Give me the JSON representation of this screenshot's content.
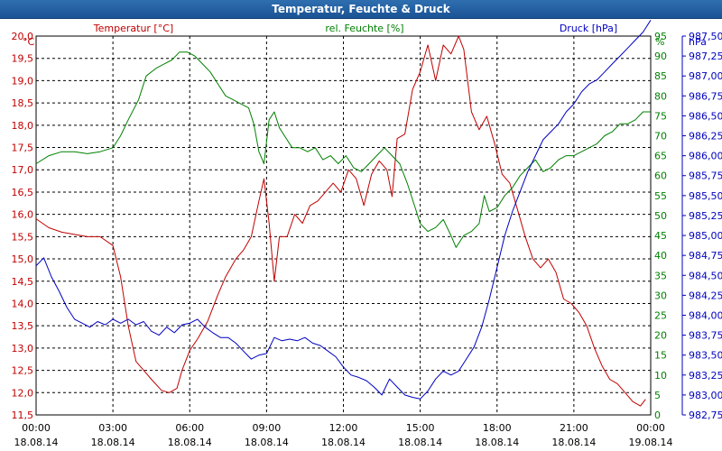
{
  "window": {
    "title": "Temperatur, Feuchte & Druck"
  },
  "colors": {
    "temperature": "#c00000",
    "humidity": "#008000",
    "pressure": "#0000c0",
    "title_bar": "#1e5a9c",
    "grid": "#000000"
  },
  "chart_data": {
    "type": "line",
    "title": "Temperatur, Feuchte & Druck",
    "grid": true,
    "x_ticks": [
      {
        "time": "00:00",
        "date": "18.08.14"
      },
      {
        "time": "03:00",
        "date": "18.08.14"
      },
      {
        "time": "06:00",
        "date": "18.08.14"
      },
      {
        "time": "09:00",
        "date": "18.08.14"
      },
      {
        "time": "12:00",
        "date": "18.08.14"
      },
      {
        "time": "15:00",
        "date": "18.08.14"
      },
      {
        "time": "18:00",
        "date": "18.08.14"
      },
      {
        "time": "21:00",
        "date": "18.08.14"
      },
      {
        "time": "00:00",
        "date": "19.08.14"
      }
    ],
    "axes": {
      "temperature": {
        "label": "Temperatur [°C]",
        "unit": "°C",
        "range": [
          11.5,
          20.0
        ],
        "ticks": [
          "11,5",
          "12,0",
          "12,5",
          "13,0",
          "13,5",
          "14,0",
          "14,5",
          "15,0",
          "15,5",
          "16,0",
          "16,5",
          "17,0",
          "17,5",
          "18,0",
          "18,5",
          "19,0",
          "19,5",
          "20,0"
        ]
      },
      "humidity": {
        "label": "rel. Feuchte [%]",
        "unit": "%",
        "range": [
          0,
          95
        ],
        "ticks": [
          "0",
          "5",
          "10",
          "15",
          "20",
          "25",
          "30",
          "35",
          "40",
          "45",
          "50",
          "55",
          "60",
          "65",
          "70",
          "75",
          "80",
          "85",
          "90",
          "95"
        ]
      },
      "pressure": {
        "label": "Druck [hPa]",
        "unit": "hPa",
        "range": [
          982.75,
          987.5
        ],
        "ticks": [
          "982,75",
          "983,00",
          "983,25",
          "983,50",
          "983,75",
          "984,00",
          "984,25",
          "984,50",
          "984,75",
          "985,00",
          "985,25",
          "985,50",
          "985,75",
          "986,00",
          "986,25",
          "986,50",
          "986,75",
          "987,00",
          "987,25",
          "987,50"
        ]
      }
    },
    "series": [
      {
        "name": "Temperatur [°C]",
        "axis": "temperature",
        "color": "#c00000",
        "points": [
          [
            0,
            15.9
          ],
          [
            0.5,
            15.7
          ],
          [
            1,
            15.6
          ],
          [
            1.5,
            15.55
          ],
          [
            2,
            15.5
          ],
          [
            2.5,
            15.5
          ],
          [
            3,
            15.3
          ],
          [
            3.3,
            14.6
          ],
          [
            3.6,
            13.5
          ],
          [
            3.9,
            12.7
          ],
          [
            4.2,
            12.5
          ],
          [
            4.5,
            12.3
          ],
          [
            4.9,
            12.05
          ],
          [
            5.2,
            12.0
          ],
          [
            5.5,
            12.1
          ],
          [
            5.7,
            12.5
          ],
          [
            6.0,
            12.95
          ],
          [
            6.3,
            13.2
          ],
          [
            6.7,
            13.6
          ],
          [
            7.1,
            14.2
          ],
          [
            7.4,
            14.6
          ],
          [
            7.8,
            15.0
          ],
          [
            8.1,
            15.2
          ],
          [
            8.4,
            15.5
          ],
          [
            8.7,
            16.3
          ],
          [
            8.9,
            16.8
          ],
          [
            9.1,
            15.8
          ],
          [
            9.3,
            14.5
          ],
          [
            9.5,
            15.5
          ],
          [
            9.8,
            15.5
          ],
          [
            10.1,
            16.0
          ],
          [
            10.4,
            15.8
          ],
          [
            10.7,
            16.2
          ],
          [
            11,
            16.3
          ],
          [
            11.3,
            16.5
          ],
          [
            11.6,
            16.7
          ],
          [
            11.9,
            16.5
          ],
          [
            12.2,
            17.0
          ],
          [
            12.5,
            16.8
          ],
          [
            12.8,
            16.2
          ],
          [
            13.1,
            16.9
          ],
          [
            13.4,
            17.2
          ],
          [
            13.7,
            17.0
          ],
          [
            13.9,
            16.4
          ],
          [
            14.1,
            17.7
          ],
          [
            14.4,
            17.8
          ],
          [
            14.7,
            18.8
          ],
          [
            15,
            19.2
          ],
          [
            15.3,
            19.8
          ],
          [
            15.6,
            19.0
          ],
          [
            15.9,
            19.8
          ],
          [
            16.2,
            19.6
          ],
          [
            16.5,
            20.0
          ],
          [
            16.7,
            19.7
          ],
          [
            17,
            18.3
          ],
          [
            17.3,
            17.9
          ],
          [
            17.6,
            18.2
          ],
          [
            17.9,
            17.6
          ],
          [
            18.2,
            16.9
          ],
          [
            18.5,
            16.7
          ],
          [
            18.8,
            16.1
          ],
          [
            19.1,
            15.5
          ],
          [
            19.4,
            15.0
          ],
          [
            19.7,
            14.8
          ],
          [
            20,
            15.0
          ],
          [
            20.3,
            14.7
          ],
          [
            20.6,
            14.1
          ],
          [
            20.9,
            14.0
          ],
          [
            21.2,
            13.8
          ],
          [
            21.5,
            13.5
          ],
          [
            21.8,
            13.0
          ],
          [
            22.1,
            12.6
          ],
          [
            22.4,
            12.3
          ],
          [
            22.7,
            12.2
          ],
          [
            23,
            12.0
          ],
          [
            23.3,
            11.8
          ],
          [
            23.6,
            11.7
          ],
          [
            23.8,
            11.85
          ]
        ]
      },
      {
        "name": "rel. Feuchte [%]",
        "axis": "humidity",
        "color": "#008000",
        "points": [
          [
            0,
            63
          ],
          [
            0.5,
            65
          ],
          [
            1,
            66
          ],
          [
            1.5,
            66
          ],
          [
            2,
            65.5
          ],
          [
            2.5,
            66
          ],
          [
            3,
            67
          ],
          [
            3.3,
            70
          ],
          [
            3.6,
            74
          ],
          [
            4,
            79
          ],
          [
            4.3,
            85
          ],
          [
            4.7,
            87
          ],
          [
            5,
            88
          ],
          [
            5.3,
            89
          ],
          [
            5.6,
            91
          ],
          [
            5.9,
            91
          ],
          [
            6.2,
            90
          ],
          [
            6.5,
            88
          ],
          [
            6.8,
            86
          ],
          [
            7.1,
            83
          ],
          [
            7.4,
            80
          ],
          [
            7.7,
            79
          ],
          [
            8,
            78
          ],
          [
            8.3,
            77
          ],
          [
            8.5,
            73
          ],
          [
            8.7,
            66
          ],
          [
            8.9,
            63
          ],
          [
            9.1,
            74
          ],
          [
            9.3,
            76
          ],
          [
            9.5,
            72
          ],
          [
            9.7,
            70
          ],
          [
            10,
            67
          ],
          [
            10.3,
            67
          ],
          [
            10.6,
            66
          ],
          [
            10.9,
            67
          ],
          [
            11.2,
            64
          ],
          [
            11.5,
            65
          ],
          [
            11.8,
            63
          ],
          [
            12.1,
            65
          ],
          [
            12.4,
            62
          ],
          [
            12.7,
            61
          ],
          [
            13,
            63
          ],
          [
            13.3,
            65
          ],
          [
            13.6,
            67
          ],
          [
            13.9,
            65
          ],
          [
            14.2,
            63
          ],
          [
            14.5,
            58
          ],
          [
            14.8,
            52
          ],
          [
            15,
            48
          ],
          [
            15.3,
            46
          ],
          [
            15.6,
            47
          ],
          [
            15.9,
            49
          ],
          [
            16.2,
            45
          ],
          [
            16.4,
            42
          ],
          [
            16.7,
            45
          ],
          [
            17,
            46
          ],
          [
            17.3,
            48
          ],
          [
            17.5,
            55
          ],
          [
            17.7,
            51
          ],
          [
            18,
            52
          ],
          [
            18.3,
            55
          ],
          [
            18.6,
            57
          ],
          [
            18.9,
            60
          ],
          [
            19.2,
            62
          ],
          [
            19.5,
            64
          ],
          [
            19.8,
            61
          ],
          [
            20.1,
            62
          ],
          [
            20.4,
            64
          ],
          [
            20.7,
            65
          ],
          [
            21,
            65
          ],
          [
            21.3,
            66
          ],
          [
            21.6,
            67
          ],
          [
            21.9,
            68
          ],
          [
            22.2,
            70
          ],
          [
            22.5,
            71
          ],
          [
            22.8,
            73
          ],
          [
            23.1,
            73
          ],
          [
            23.4,
            74
          ],
          [
            23.7,
            76
          ],
          [
            24,
            76
          ]
        ]
      },
      {
        "name": "Druck [hPa]",
        "axis": "pressure",
        "color": "#0000c0",
        "points": [
          [
            0,
            984.62
          ],
          [
            0.3,
            984.72
          ],
          [
            0.6,
            984.48
          ],
          [
            0.9,
            984.3
          ],
          [
            1.2,
            984.1
          ],
          [
            1.5,
            983.95
          ],
          [
            1.8,
            983.9
          ],
          [
            2.1,
            983.85
          ],
          [
            2.4,
            983.92
          ],
          [
            2.7,
            983.88
          ],
          [
            3,
            983.95
          ],
          [
            3.3,
            983.9
          ],
          [
            3.6,
            983.95
          ],
          [
            3.9,
            983.88
          ],
          [
            4.2,
            983.92
          ],
          [
            4.5,
            983.8
          ],
          [
            4.8,
            983.75
          ],
          [
            5.1,
            983.85
          ],
          [
            5.4,
            983.78
          ],
          [
            5.7,
            983.88
          ],
          [
            6,
            983.9
          ],
          [
            6.3,
            983.95
          ],
          [
            6.6,
            983.85
          ],
          [
            6.9,
            983.78
          ],
          [
            7.2,
            983.72
          ],
          [
            7.5,
            983.72
          ],
          [
            7.8,
            983.65
          ],
          [
            8.1,
            983.55
          ],
          [
            8.4,
            983.45
          ],
          [
            8.7,
            983.5
          ],
          [
            9,
            983.52
          ],
          [
            9.3,
            983.72
          ],
          [
            9.6,
            983.68
          ],
          [
            9.9,
            983.7
          ],
          [
            10.2,
            983.68
          ],
          [
            10.5,
            983.72
          ],
          [
            10.8,
            983.65
          ],
          [
            11.1,
            983.62
          ],
          [
            11.4,
            983.55
          ],
          [
            11.7,
            983.48
          ],
          [
            12,
            983.35
          ],
          [
            12.3,
            983.25
          ],
          [
            12.6,
            983.22
          ],
          [
            12.9,
            983.18
          ],
          [
            13.2,
            983.1
          ],
          [
            13.5,
            983.0
          ],
          [
            13.8,
            983.2
          ],
          [
            14.1,
            983.1
          ],
          [
            14.4,
            983.0
          ],
          [
            14.7,
            982.97
          ],
          [
            15,
            982.95
          ],
          [
            15.3,
            983.05
          ],
          [
            15.6,
            983.2
          ],
          [
            15.9,
            983.3
          ],
          [
            16.2,
            983.25
          ],
          [
            16.5,
            983.3
          ],
          [
            16.8,
            983.45
          ],
          [
            17.1,
            983.6
          ],
          [
            17.4,
            983.85
          ],
          [
            17.7,
            984.2
          ],
          [
            18,
            984.6
          ],
          [
            18.3,
            985.0
          ],
          [
            18.6,
            985.3
          ],
          [
            18.9,
            985.55
          ],
          [
            19.2,
            985.8
          ],
          [
            19.5,
            986.0
          ],
          [
            19.8,
            986.2
          ],
          [
            20.1,
            986.3
          ],
          [
            20.4,
            986.4
          ],
          [
            20.7,
            986.55
          ],
          [
            21,
            986.65
          ],
          [
            21.3,
            986.8
          ],
          [
            21.6,
            986.9
          ],
          [
            21.9,
            986.95
          ],
          [
            22.2,
            987.05
          ],
          [
            22.5,
            987.15
          ],
          [
            22.8,
            987.25
          ],
          [
            23.1,
            987.35
          ],
          [
            23.4,
            987.45
          ],
          [
            23.7,
            987.55
          ],
          [
            24,
            987.7
          ]
        ]
      }
    ]
  }
}
